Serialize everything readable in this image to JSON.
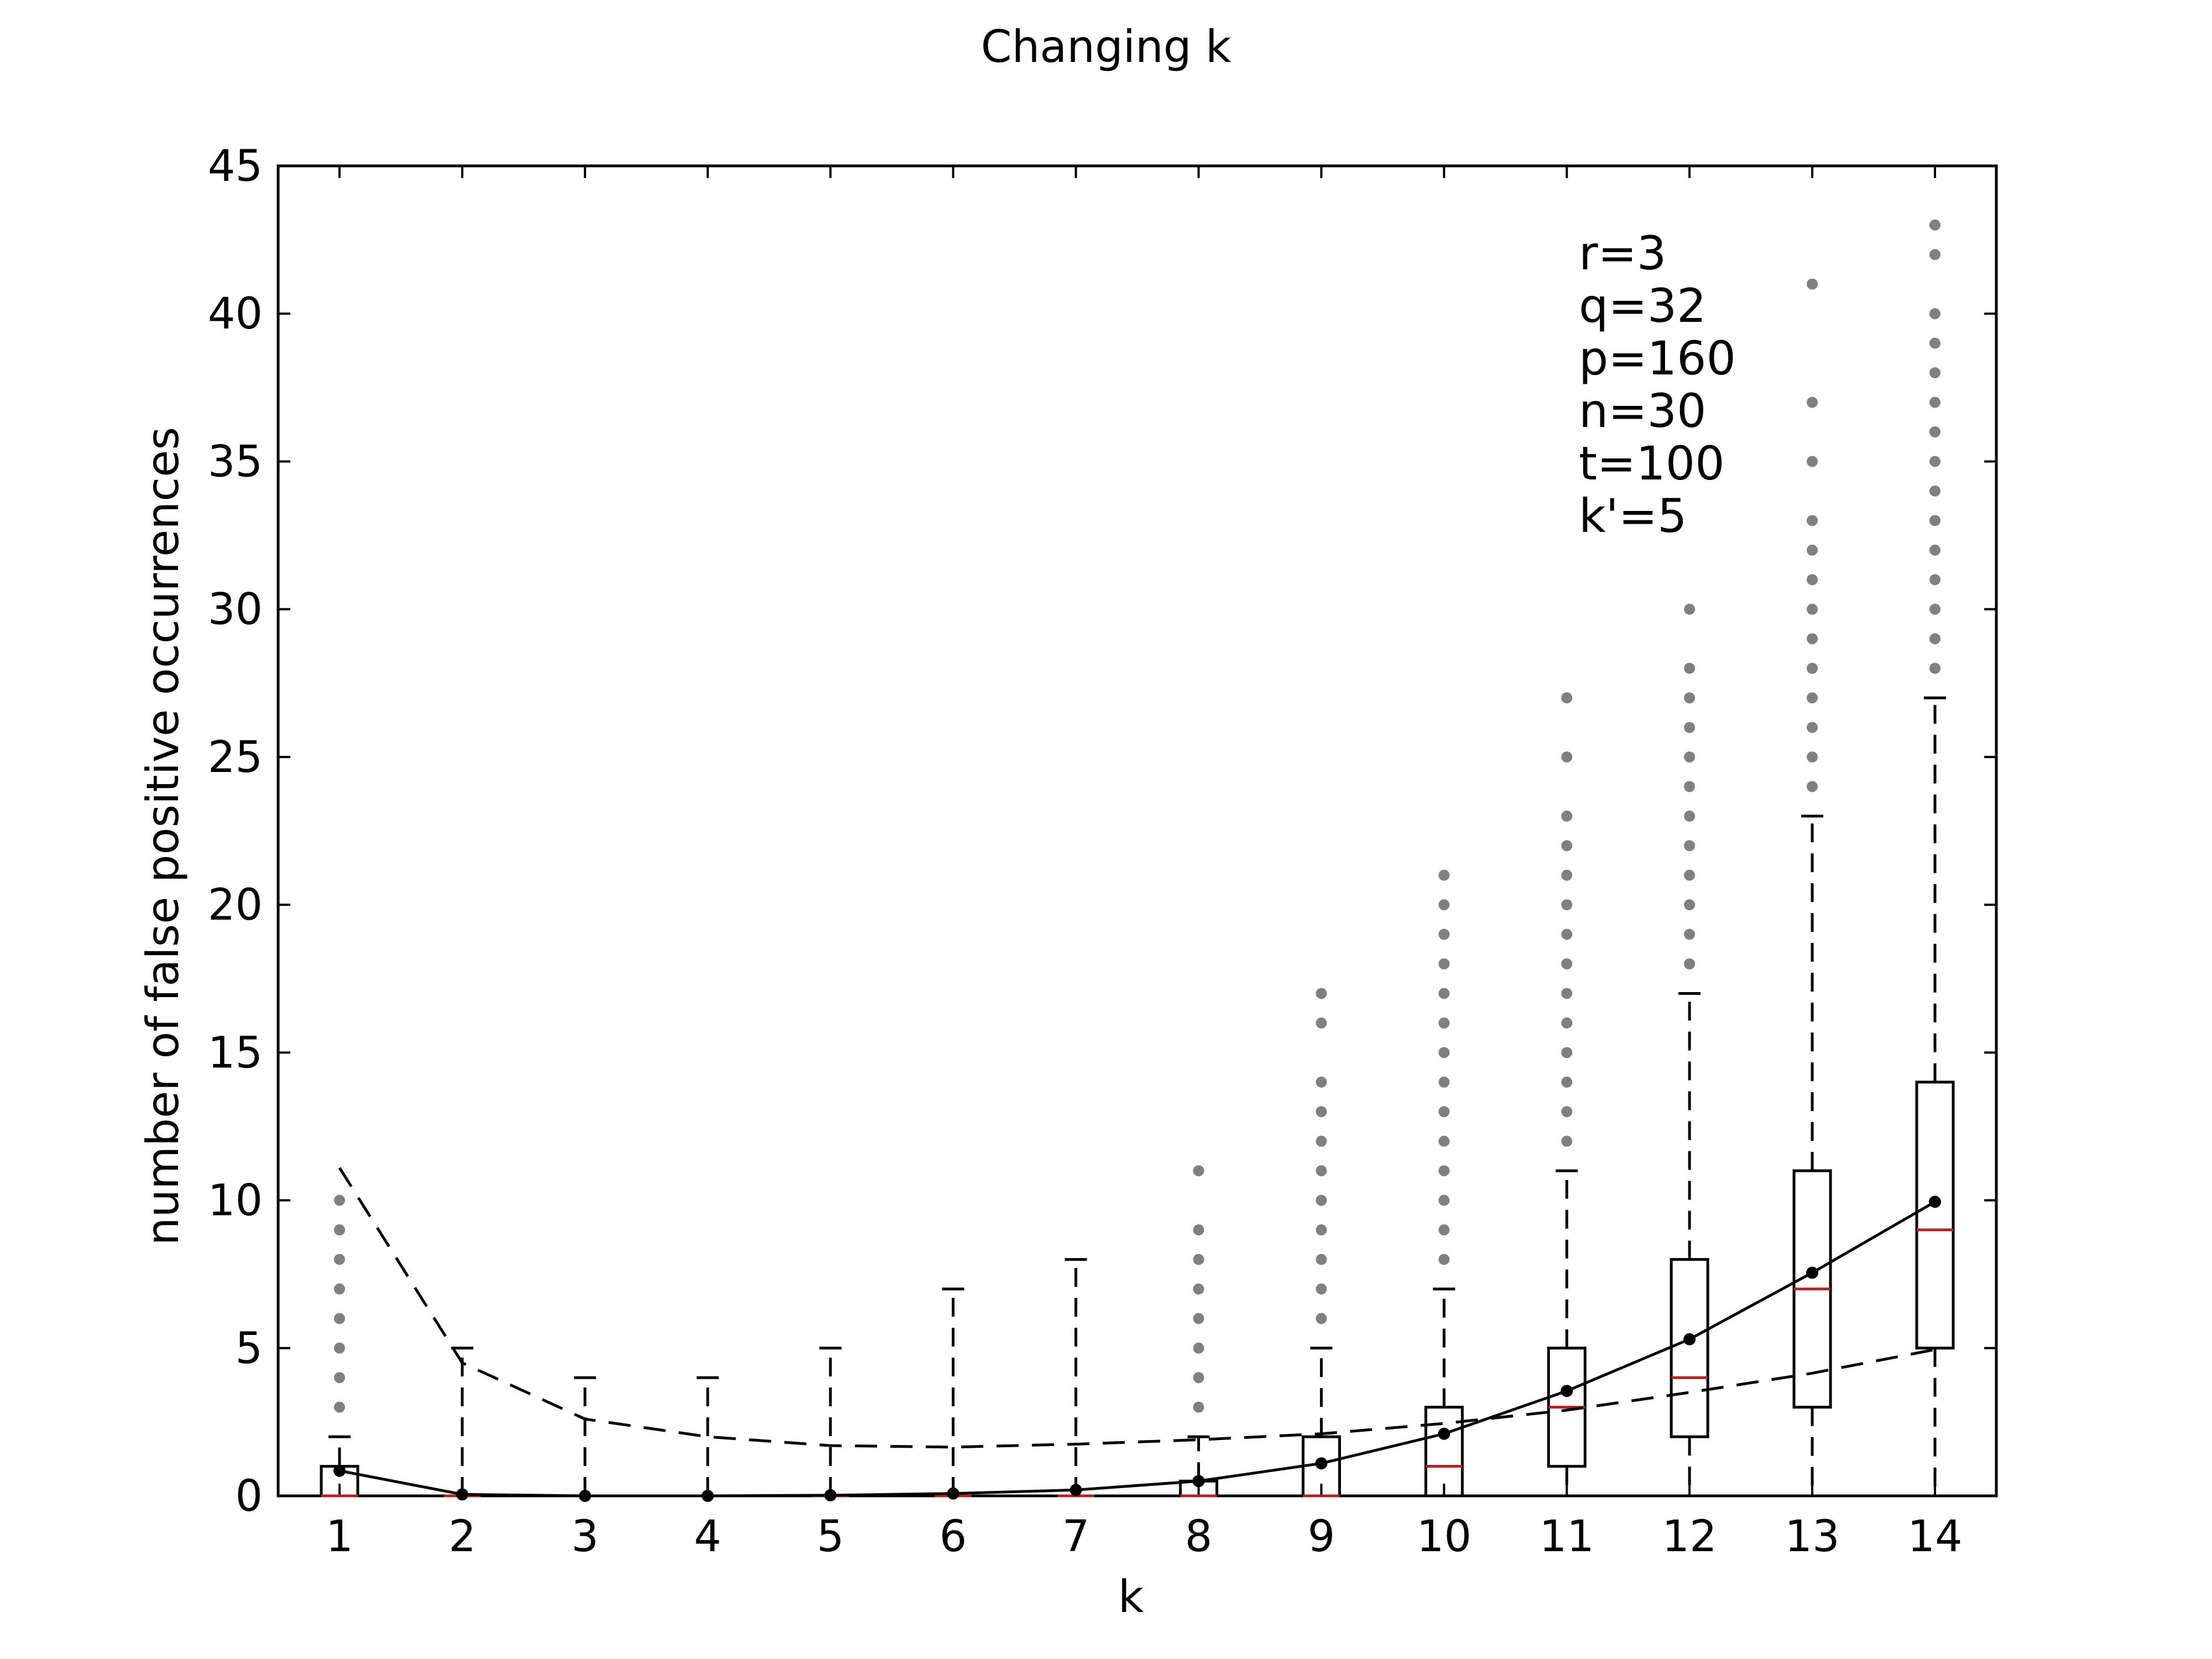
{
  "chart_data": {
    "type": "box",
    "title": "Changing k",
    "xlabel": "k",
    "ylabel": "number of false positive occurrences",
    "xlim": [
      0.5,
      14.5
    ],
    "ylim": [
      0,
      45
    ],
    "categories": [
      "1",
      "2",
      "3",
      "4",
      "5",
      "6",
      "7",
      "8",
      "9",
      "10",
      "11",
      "12",
      "13",
      "14"
    ],
    "yticks": [
      0,
      5,
      10,
      15,
      20,
      25,
      30,
      35,
      40,
      45
    ],
    "grid": false,
    "annotation": [
      "r=3",
      "q=32",
      "p=160",
      "n=30",
      "t=100",
      "k'=5"
    ],
    "boxes": [
      {
        "x": 1,
        "whislo": 0,
        "q1": 0,
        "med": 0,
        "q3": 1,
        "whishi": 2,
        "fliers": [
          3,
          4,
          5,
          6,
          7,
          8,
          9,
          10
        ]
      },
      {
        "x": 2,
        "whislo": 0,
        "q1": 0,
        "med": 0,
        "q3": 0,
        "whishi": 5,
        "fliers": []
      },
      {
        "x": 3,
        "whislo": 0,
        "q1": 0,
        "med": 0,
        "q3": 0,
        "whishi": 4,
        "fliers": []
      },
      {
        "x": 4,
        "whislo": 0,
        "q1": 0,
        "med": 0,
        "q3": 0,
        "whishi": 4,
        "fliers": []
      },
      {
        "x": 5,
        "whislo": 0,
        "q1": 0,
        "med": 0,
        "q3": 0,
        "whishi": 5,
        "fliers": []
      },
      {
        "x": 6,
        "whislo": 0,
        "q1": 0,
        "med": 0,
        "q3": 0,
        "whishi": 7,
        "fliers": []
      },
      {
        "x": 7,
        "whislo": 0,
        "q1": 0,
        "med": 0,
        "q3": 0,
        "whishi": 8,
        "fliers": []
      },
      {
        "x": 8,
        "whislo": 0,
        "q1": 0,
        "med": 0,
        "q3": 0.5,
        "whishi": 2,
        "fliers": [
          3,
          4,
          5,
          6,
          7,
          8,
          9,
          11
        ]
      },
      {
        "x": 9,
        "whislo": 0,
        "q1": 0,
        "med": 0,
        "q3": 2,
        "whishi": 5,
        "fliers": [
          6,
          7,
          8,
          9,
          10,
          11,
          12,
          13,
          14,
          16,
          17
        ]
      },
      {
        "x": 10,
        "whislo": 0,
        "q1": 0,
        "med": 1,
        "q3": 3,
        "whishi": 7,
        "fliers": [
          8,
          9,
          10,
          11,
          12,
          13,
          14,
          15,
          16,
          17,
          18,
          19,
          20,
          21
        ]
      },
      {
        "x": 11,
        "whislo": 0,
        "q1": 1,
        "med": 3,
        "q3": 5,
        "whishi": 11,
        "fliers": [
          12,
          13,
          14,
          15,
          16,
          17,
          18,
          19,
          20,
          21,
          22,
          23,
          25,
          27
        ]
      },
      {
        "x": 12,
        "whislo": 0,
        "q1": 2,
        "med": 4,
        "q3": 8,
        "whishi": 17,
        "fliers": [
          18,
          19,
          20,
          21,
          22,
          23,
          24,
          25,
          26,
          27,
          28,
          30
        ]
      },
      {
        "x": 13,
        "whislo": 0,
        "q1": 3,
        "med": 7,
        "q3": 11,
        "whishi": 23,
        "fliers": [
          24,
          25,
          26,
          27,
          28,
          29,
          30,
          31,
          32,
          33,
          35,
          37,
          41
        ]
      },
      {
        "x": 14,
        "whislo": 0,
        "q1": 5,
        "med": 9,
        "q3": 14,
        "whishi": 27,
        "fliers": [
          28,
          29,
          30,
          31,
          32,
          33,
          34,
          35,
          36,
          37,
          38,
          39,
          40,
          42,
          43
        ]
      }
    ],
    "series": [
      {
        "style": "solid-with-markers",
        "x": [
          1,
          2,
          3,
          4,
          5,
          6,
          7,
          8,
          9,
          10,
          11,
          12,
          13,
          14
        ],
        "values": [
          0.85,
          0.05,
          0.0,
          0.0,
          0.02,
          0.08,
          0.2,
          0.5,
          1.1,
          2.1,
          3.55,
          5.3,
          7.55,
          9.95
        ]
      },
      {
        "style": "dashed",
        "x": [
          1,
          2,
          3,
          4,
          5,
          6,
          7,
          8,
          9,
          10,
          11,
          12,
          13,
          14
        ],
        "values": [
          11.1,
          4.5,
          2.6,
          2.0,
          1.7,
          1.65,
          1.75,
          1.9,
          2.1,
          2.45,
          2.9,
          3.5,
          4.15,
          4.95
        ]
      }
    ],
    "colors": {
      "median": "#b22222",
      "flier": "#808080",
      "line": "#000000"
    }
  }
}
